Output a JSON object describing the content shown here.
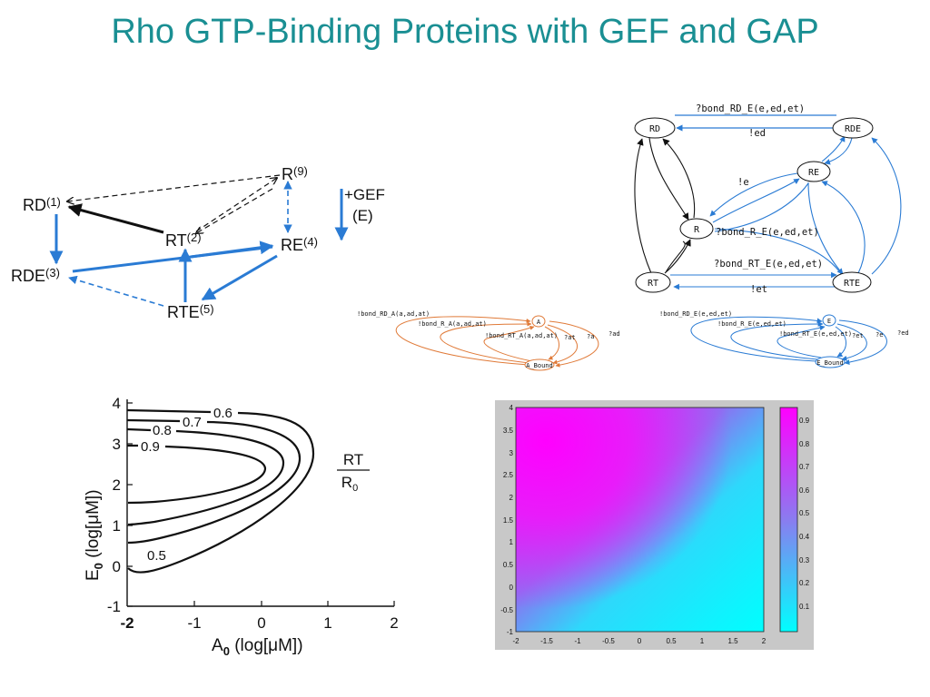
{
  "title": "Rho GTP-Binding Proteins with GEF and GAP",
  "scheme": {
    "nodes": {
      "R": {
        "label": "R",
        "num": "(9)"
      },
      "RD": {
        "label": "RD",
        "num": "(1)"
      },
      "RT": {
        "label": "RT",
        "num": "(2)"
      },
      "RE": {
        "label": "RE",
        "num": "(4)"
      },
      "RDE": {
        "label": "RDE",
        "num": "(3)"
      },
      "RTE": {
        "label": "RTE",
        "num": "(5)"
      }
    },
    "legend_line1": "+GEF",
    "legend_line2": "(E)"
  },
  "network": {
    "nodes": {
      "RD": "RD",
      "RDE": "RDE",
      "RE": "RE",
      "R": "R",
      "RT": "RT",
      "RTE": "RTE"
    },
    "edges": {
      "bond_rd_e": "?bond_RD_E(e,ed,et)",
      "ed": "!ed",
      "e": "!e",
      "bond_r_e": "?bond_R_E(e,ed,et)",
      "bond_rt_e": "?bond_RT_E(e,ed,et)",
      "et": "!et"
    }
  },
  "small_left": {
    "node_top": "A",
    "node_bottom": "A_Bound",
    "l1": "!bond_RD_A(a,ad,at)",
    "l2": "!bond_R_A(a,ad,at)",
    "l3": "!bond_RT_A(a,ad,at)",
    "l4": "?at",
    "l5": "?a",
    "l6": "?ad"
  },
  "small_right": {
    "node_top": "E",
    "node_bottom": "E_Bound",
    "l1": "!bond_RD_E(e,ed,et)",
    "l2": "!bond_R_E(e,ed,et)",
    "l3": "!bond_RT_E(e,ed,et)",
    "l4": "?et",
    "l5": "?e",
    "l6": "?ed"
  },
  "contour": {
    "ylabel_main": "E",
    "ylabel_sub": "0",
    "ylabel_rest": " (log[μM])",
    "xlabel_main": "A",
    "xlabel_sub": "0",
    "xlabel_rest": " (log[μM])",
    "yticks": [
      "4",
      "3",
      "2",
      "1",
      "0",
      "-1"
    ],
    "xticks": [
      "-2",
      "-1",
      "0",
      "1",
      "2"
    ],
    "levels": [
      "0.6",
      "0.7",
      "0.8",
      "0.9",
      "0.5"
    ],
    "ratio_num": "RT",
    "ratio_den_main": "R",
    "ratio_den_sub": "0"
  },
  "heatmap": {
    "yticks": [
      "4",
      "3.5",
      "3",
      "2.5",
      "2",
      "1.5",
      "1",
      "0.5",
      "0",
      "-0.5",
      "-1"
    ],
    "xticks": [
      "-2",
      "-1.5",
      "-1",
      "-0.5",
      "0",
      "0.5",
      "1",
      "1.5",
      "2"
    ],
    "cbar_ticks": [
      "0.9",
      "0.8",
      "0.7",
      "0.6",
      "0.5",
      "0.4",
      "0.3",
      "0.2",
      "0.1"
    ],
    "colors": {
      "high": "#ff00ff",
      "low": "#00ffff",
      "frame": "#c8c8c8"
    }
  },
  "colors": {
    "title": "#1a8f93",
    "blue": "#2a7bd4",
    "orange": "#e07a38"
  }
}
